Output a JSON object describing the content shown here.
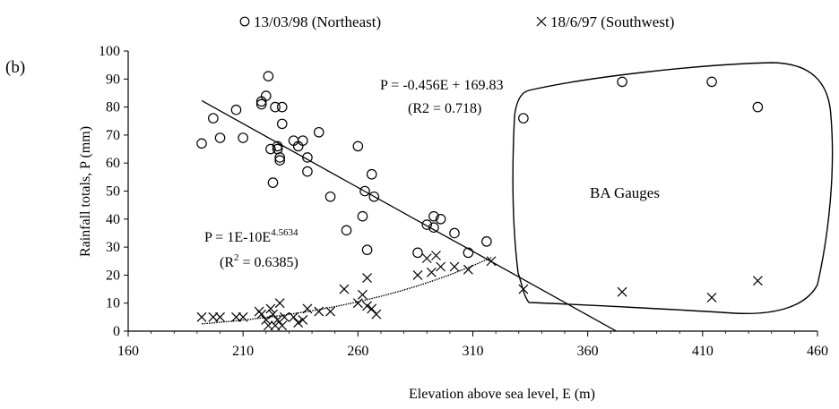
{
  "chart_data": {
    "type": "scatter",
    "panel_label": "(b)",
    "xlabel": "Elevation above sea level, E (m)",
    "ylabel": "Rainfall totals, P (mm)",
    "xlim": [
      160,
      460
    ],
    "ylim": [
      0,
      100
    ],
    "x_ticks": [
      160,
      210,
      260,
      310,
      360,
      410,
      460
    ],
    "y_ticks": [
      0,
      10,
      20,
      30,
      40,
      50,
      60,
      70,
      80,
      90,
      100
    ],
    "grid": false,
    "legend_placement": "top",
    "series": [
      {
        "name": "13/03/98 (Northeast)",
        "marker": "circle",
        "points": [
          [
            192,
            67
          ],
          [
            197,
            76
          ],
          [
            200,
            69
          ],
          [
            207,
            79
          ],
          [
            210,
            69
          ],
          [
            218,
            81
          ],
          [
            218,
            82
          ],
          [
            220,
            84
          ],
          [
            221,
            91
          ],
          [
            222,
            65
          ],
          [
            223,
            53
          ],
          [
            224,
            80
          ],
          [
            225,
            65
          ],
          [
            225,
            66
          ],
          [
            226,
            61
          ],
          [
            226,
            62
          ],
          [
            227,
            74
          ],
          [
            227,
            80
          ],
          [
            232,
            68
          ],
          [
            234,
            66
          ],
          [
            236,
            68
          ],
          [
            238,
            62
          ],
          [
            238,
            57
          ],
          [
            243,
            71
          ],
          [
            248,
            48
          ],
          [
            255,
            36
          ],
          [
            260,
            66
          ],
          [
            262,
            41
          ],
          [
            263,
            50
          ],
          [
            264,
            29
          ],
          [
            266,
            56
          ],
          [
            267,
            48
          ],
          [
            286,
            28
          ],
          [
            290,
            38
          ],
          [
            293,
            41
          ],
          [
            293,
            37
          ],
          [
            296,
            40
          ],
          [
            302,
            35
          ],
          [
            308,
            28
          ],
          [
            316,
            32
          ],
          [
            332,
            76
          ],
          [
            375,
            89
          ],
          [
            414,
            89
          ],
          [
            434,
            80
          ]
        ]
      },
      {
        "name": "18/6/97 (Southwest)",
        "marker": "cross",
        "points": [
          [
            192,
            5
          ],
          [
            197,
            5
          ],
          [
            200,
            5
          ],
          [
            207,
            5
          ],
          [
            210,
            5
          ],
          [
            217,
            7
          ],
          [
            218,
            6
          ],
          [
            220,
            4
          ],
          [
            221,
            2
          ],
          [
            222,
            8
          ],
          [
            223,
            6
          ],
          [
            224,
            2
          ],
          [
            225,
            4
          ],
          [
            226,
            10
          ],
          [
            227,
            2
          ],
          [
            228,
            5
          ],
          [
            232,
            5
          ],
          [
            234,
            3
          ],
          [
            236,
            4
          ],
          [
            238,
            8
          ],
          [
            243,
            7
          ],
          [
            248,
            7
          ],
          [
            254,
            15
          ],
          [
            260,
            10
          ],
          [
            262,
            13
          ],
          [
            264,
            19
          ],
          [
            264,
            9
          ],
          [
            266,
            8
          ],
          [
            268,
            6
          ],
          [
            286,
            20
          ],
          [
            290,
            26
          ],
          [
            292,
            21
          ],
          [
            294,
            27
          ],
          [
            296,
            23
          ],
          [
            302,
            23
          ],
          [
            308,
            22
          ],
          [
            318,
            25
          ],
          [
            332,
            15
          ],
          [
            375,
            14
          ],
          [
            414,
            12
          ],
          [
            434,
            18
          ]
        ]
      }
    ],
    "trendlines": [
      {
        "series": "13/03/98 (Northeast)",
        "type": "linear",
        "slope": -0.456,
        "intercept": 169.83,
        "x_range": [
          192,
          372.4
        ]
      },
      {
        "series": "18/6/97 (Southwest)",
        "type": "power",
        "coef": 1e-10,
        "exponent": 4.5634,
        "x_range": [
          192,
          318
        ]
      }
    ],
    "annotations": {
      "linear_eq": "P = -0.456E + 169.83",
      "linear_r2": "(R2 = 0.718)",
      "power_eq_main": "P = 1E-10E",
      "power_eq_exp": "4.5634",
      "power_r2_a": "(R",
      "power_r2_sup": "2",
      "power_r2_b": " = 0.6385)",
      "region_label": "BA Gauges"
    }
  }
}
